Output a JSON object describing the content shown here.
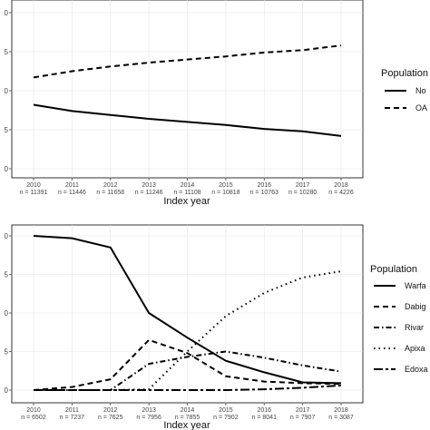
{
  "chart_data": [
    {
      "type": "line",
      "xlabel": "Index year",
      "x": [
        "2010",
        "2011",
        "2012",
        "2013",
        "2014",
        "2015",
        "2016",
        "2017",
        "2018"
      ],
      "x_counts": [
        "n = 11391",
        "n = 11446",
        "n = 11658",
        "n = 11246",
        "n = 11108",
        "n = 10818",
        "n = 10763",
        "n = 10280",
        "n = 4226"
      ],
      "ylim": [
        0,
        1
      ],
      "y_tick_labels": [
        "0",
        "5",
        "0",
        "5",
        "0"
      ],
      "legend": {
        "title": "Population",
        "placement": "right"
      },
      "series": [
        {
          "name": "No",
          "style": "solid",
          "values": [
            0.41,
            0.37,
            0.345,
            0.32,
            0.3,
            0.28,
            0.255,
            0.24,
            0.21
          ]
        },
        {
          "name": "OA",
          "style": "dashed",
          "values": [
            0.585,
            0.625,
            0.655,
            0.68,
            0.7,
            0.72,
            0.745,
            0.76,
            0.79
          ]
        }
      ]
    },
    {
      "type": "line",
      "xlabel": "Index year",
      "x": [
        "2010",
        "2011",
        "2012",
        "2013",
        "2014",
        "2015",
        "2016",
        "2017",
        "2018"
      ],
      "x_counts": [
        "n = 6502",
        "n = 7237",
        "n = 7625",
        "n = 7956",
        "n = 7855",
        "n = 7902",
        "n = 8041",
        "n = 7907",
        "n = 3087"
      ],
      "ylim": [
        0,
        1
      ],
      "y_tick_labels": [
        "0",
        "5",
        "0",
        "5",
        "0"
      ],
      "legend": {
        "title": "Population",
        "placement": "right"
      },
      "series": [
        {
          "name": "Warfa",
          "style": "solid",
          "values": [
            1.0,
            0.985,
            0.925,
            0.5,
            0.34,
            0.19,
            0.115,
            0.05,
            0.045
          ]
        },
        {
          "name": "Dabig",
          "style": "dashed",
          "values": [
            0.0,
            0.02,
            0.07,
            0.325,
            0.24,
            0.09,
            0.055,
            0.045,
            0.04
          ]
        },
        {
          "name": "Rivar",
          "style": "dashdot",
          "values": [
            0.0,
            0.0,
            0.0,
            0.17,
            0.215,
            0.25,
            0.21,
            0.16,
            0.12
          ]
        },
        {
          "name": "Apixa",
          "style": "dotted",
          "values": [
            0.0,
            0.0,
            0.0,
            0.005,
            0.25,
            0.48,
            0.63,
            0.73,
            0.77
          ]
        },
        {
          "name": "Edoxa",
          "style": "longdash",
          "values": [
            0.0,
            0.0,
            0.0,
            0.0,
            0.0,
            0.0,
            0.005,
            0.015,
            0.03
          ]
        }
      ]
    }
  ]
}
